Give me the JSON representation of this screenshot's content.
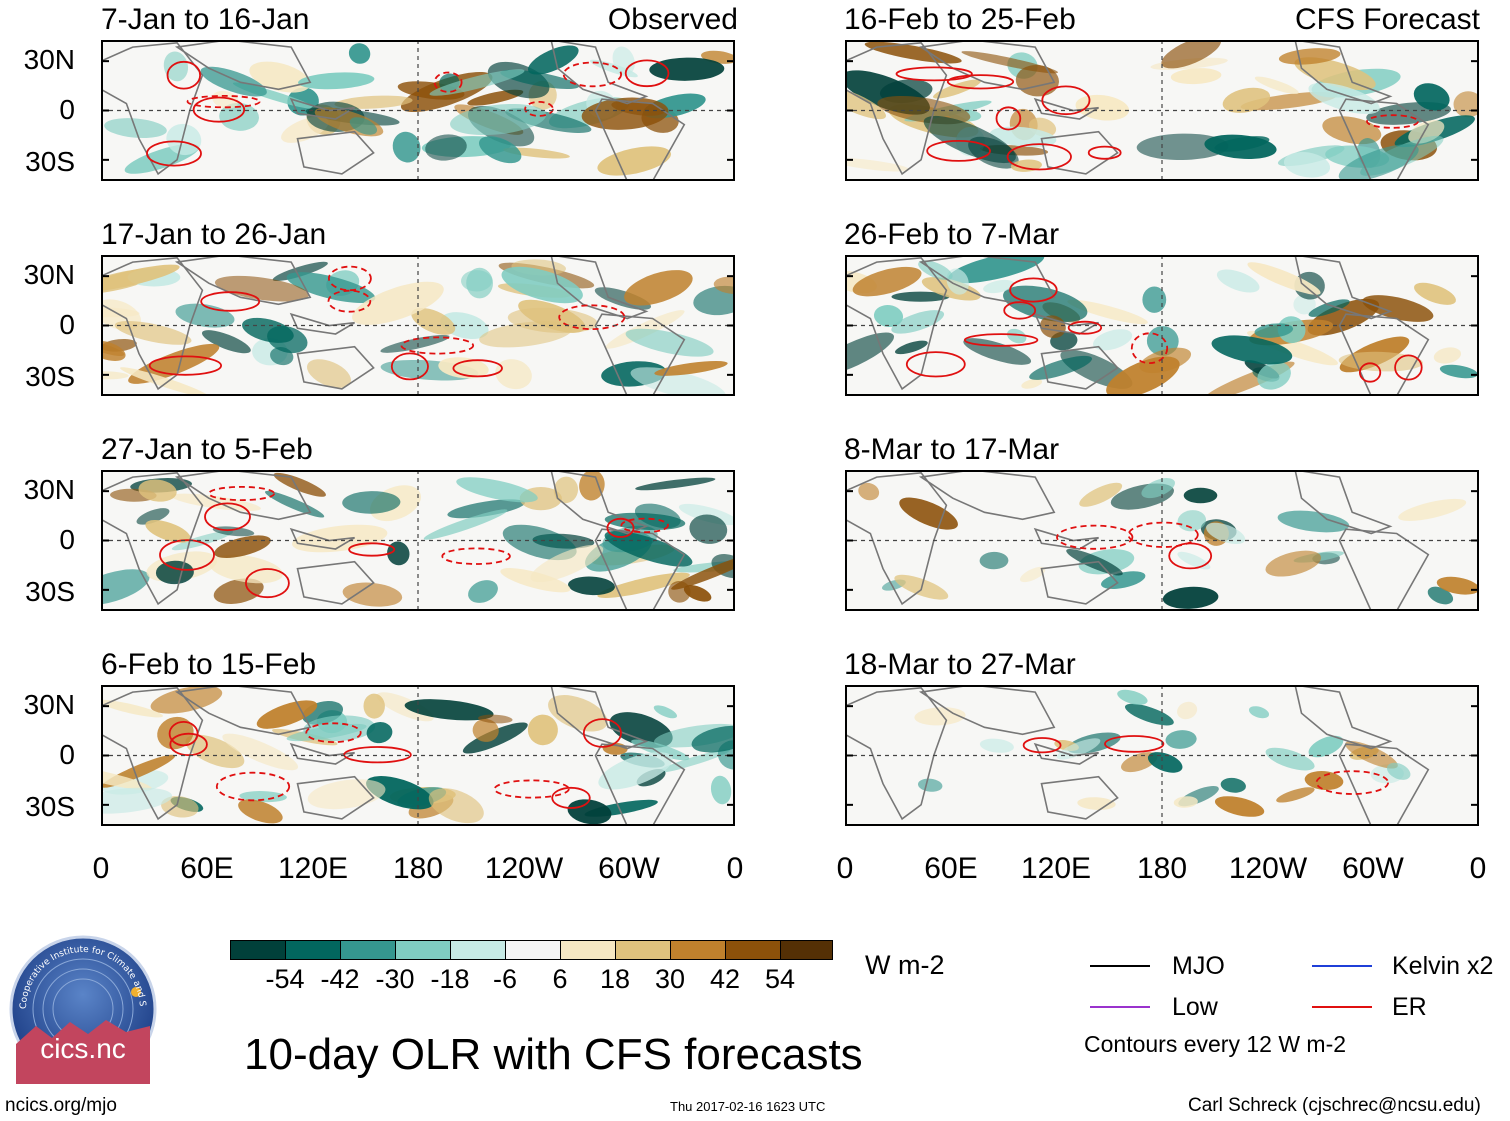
{
  "headers": {
    "observed": "Observed",
    "forecast": "CFS Forecast"
  },
  "panels": {
    "p0": {
      "title": "7-Jan to 16-Jan"
    },
    "p1": {
      "title": "17-Jan to 26-Jan"
    },
    "p2": {
      "title": "27-Jan to 5-Feb"
    },
    "p3": {
      "title": "6-Feb to 15-Feb"
    },
    "p4": {
      "title": "16-Feb to 25-Feb"
    },
    "p5": {
      "title": "26-Feb to 7-Mar"
    },
    "p6": {
      "title": "8-Mar to 17-Mar"
    },
    "p7": {
      "title": "18-Mar to 27-Mar"
    }
  },
  "axes": {
    "lat": {
      "n30": "30N",
      "eq": "0",
      "s30": "30S"
    },
    "lon": {
      "l0": "0",
      "l60e": "60E",
      "l120e": "120E",
      "l180": "180",
      "l120w": "120W",
      "l60w": "60W",
      "l360": "0"
    }
  },
  "colorbar": {
    "colors": [
      "#01403a",
      "#02665e",
      "#35978f",
      "#80cdc1",
      "#c7eae5",
      "#f5f5f5",
      "#f6e8c3",
      "#dfc27d",
      "#bf812d",
      "#8c510a",
      "#543005"
    ],
    "ticks": {
      "t0": "-54",
      "t1": "-42",
      "t2": "-30",
      "t3": "-18",
      "t4": "-6",
      "t5": "6",
      "t6": "18",
      "t7": "30",
      "t8": "42",
      "t9": "54"
    },
    "units": "W m-2"
  },
  "legend": {
    "mjo": {
      "label": "MJO",
      "color": "#000000"
    },
    "kelvin": {
      "label": "Kelvin x2",
      "color": "#1f3fd8"
    },
    "low": {
      "label": "Low",
      "color": "#9a32cd"
    },
    "er": {
      "label": "ER",
      "color": "#e01010"
    },
    "contours_note": "Contours every 12 W m-2"
  },
  "main_title": "10-day OLR with CFS forecasts",
  "logo": {
    "text": "cics.nc",
    "ring_text": "Cooperative Institute for Climate and Satellites"
  },
  "footer": {
    "url": "ncics.org/mjo",
    "timestamp": "Thu 2017-02-16 1623 UTC",
    "author": "Carl Schreck (cjschrec@ncsu.edu)"
  },
  "map_layers": {
    "fill_palette": [
      "#01403a",
      "#02665e",
      "#35978f",
      "#80cdc1",
      "#c7eae5",
      "#f6e8c3",
      "#dfc27d",
      "#bf812d",
      "#8c510a"
    ],
    "contour_color": "#e01010",
    "coast_color": "#777777"
  }
}
